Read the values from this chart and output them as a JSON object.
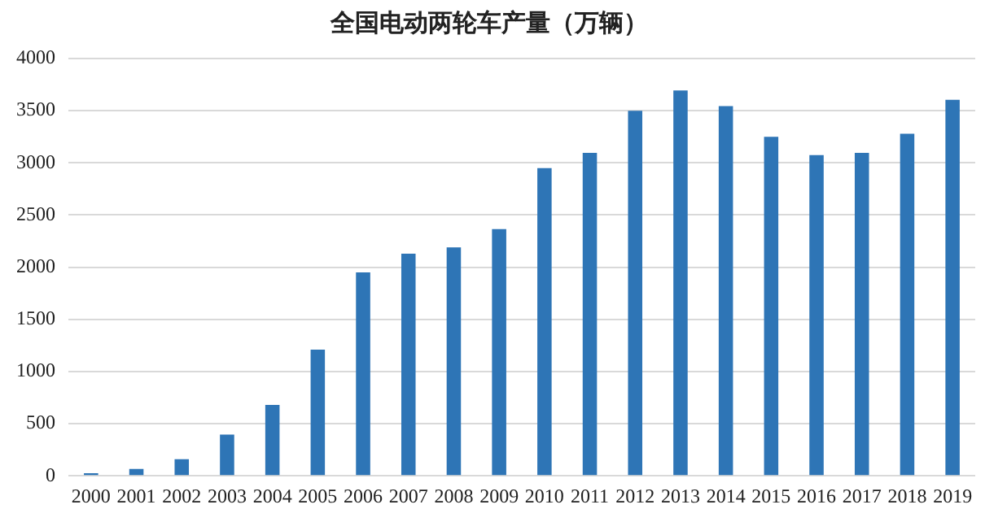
{
  "chart_data": {
    "type": "bar",
    "title": "全国电动两轮车产量（万辆）",
    "categories": [
      "2000",
      "2001",
      "2002",
      "2003",
      "2004",
      "2005",
      "2006",
      "2007",
      "2008",
      "2009",
      "2010",
      "2011",
      "2012",
      "2013",
      "2014",
      "2015",
      "2016",
      "2017",
      "2018",
      "2019"
    ],
    "values": [
      25,
      65,
      160,
      396,
      680,
      1210,
      1950,
      2130,
      2190,
      2366,
      2950,
      3095,
      3500,
      3695,
      3545,
      3250,
      3075,
      3095,
      3280,
      3605
    ],
    "color": "#2e75b6",
    "ylim": [
      0,
      4000
    ],
    "yticks": [
      0,
      500,
      1000,
      1500,
      2000,
      2500,
      3000,
      3500,
      4000
    ],
    "grid": "y"
  }
}
